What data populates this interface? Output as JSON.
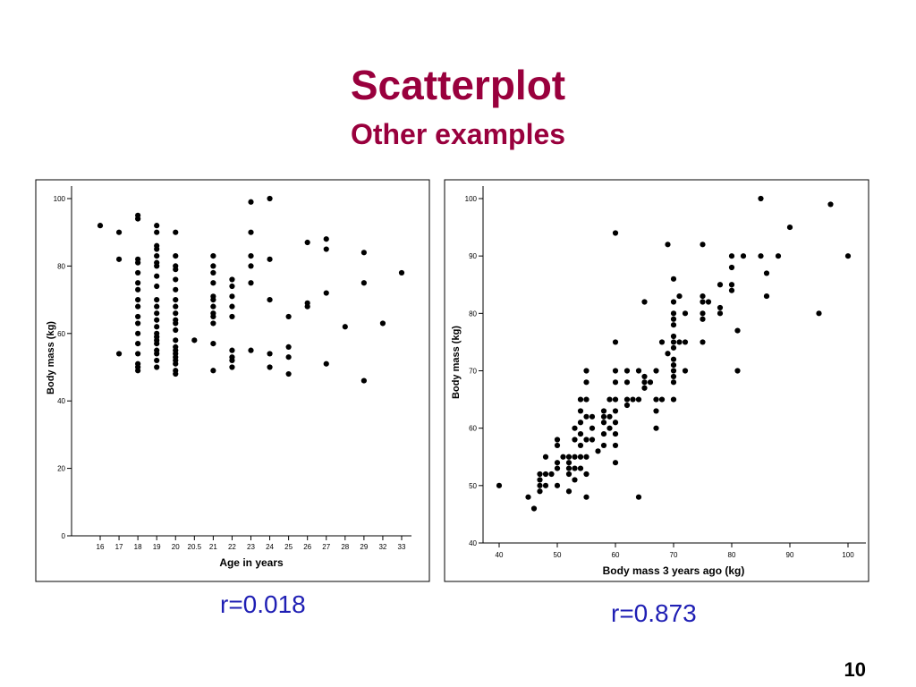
{
  "slide": {
    "title": "Scatterplot",
    "subtitle": "Other examples",
    "page_number": "10",
    "accent_color": "#99003d",
    "r_color": "#1f1fb4"
  },
  "chart_data": [
    {
      "type": "scatter",
      "r_label": "r=0.018",
      "xlabel": "Age in years",
      "ylabel": "Body mass (kg)",
      "x_axis": "categorical",
      "categories": [
        "16",
        "17",
        "18",
        "19",
        "20",
        "20.5",
        "21",
        "22",
        "23",
        "24",
        "25",
        "26",
        "27",
        "28",
        "29",
        "32",
        "33"
      ],
      "ylim": [
        0,
        100
      ],
      "yticks": [
        0,
        20,
        40,
        60,
        80,
        100
      ],
      "grid": false,
      "points": [
        [
          "16",
          92
        ],
        [
          "17",
          90
        ],
        [
          "17",
          82
        ],
        [
          "17",
          54
        ],
        [
          "18",
          95
        ],
        [
          "18",
          94
        ],
        [
          "18",
          82
        ],
        [
          "18",
          81
        ],
        [
          "18",
          78
        ],
        [
          "18",
          75
        ],
        [
          "18",
          73
        ],
        [
          "18",
          70
        ],
        [
          "18",
          68
        ],
        [
          "18",
          65
        ],
        [
          "18",
          63
        ],
        [
          "18",
          60
        ],
        [
          "18",
          57
        ],
        [
          "18",
          54
        ],
        [
          "18",
          51
        ],
        [
          "18",
          50
        ],
        [
          "18",
          49
        ],
        [
          "19",
          92
        ],
        [
          "19",
          90
        ],
        [
          "19",
          86
        ],
        [
          "19",
          85
        ],
        [
          "19",
          83
        ],
        [
          "19",
          81
        ],
        [
          "19",
          80
        ],
        [
          "19",
          77
        ],
        [
          "19",
          74
        ],
        [
          "19",
          70
        ],
        [
          "19",
          68
        ],
        [
          "19",
          66
        ],
        [
          "19",
          64
        ],
        [
          "19",
          62
        ],
        [
          "19",
          60
        ],
        [
          "19",
          59
        ],
        [
          "19",
          58
        ],
        [
          "19",
          57
        ],
        [
          "19",
          55
        ],
        [
          "19",
          54
        ],
        [
          "19",
          52
        ],
        [
          "19",
          50
        ],
        [
          "20",
          90
        ],
        [
          "20",
          83
        ],
        [
          "20",
          80
        ],
        [
          "20",
          79
        ],
        [
          "20",
          76
        ],
        [
          "20",
          73
        ],
        [
          "20",
          70
        ],
        [
          "20",
          68
        ],
        [
          "20",
          66
        ],
        [
          "20",
          64
        ],
        [
          "20",
          63
        ],
        [
          "20",
          61
        ],
        [
          "20",
          58
        ],
        [
          "20",
          56
        ],
        [
          "20",
          55
        ],
        [
          "20",
          54
        ],
        [
          "20",
          53
        ],
        [
          "20",
          52
        ],
        [
          "20",
          51
        ],
        [
          "20",
          49
        ],
        [
          "20",
          48
        ],
        [
          "20.5",
          58
        ],
        [
          "21",
          83
        ],
        [
          "21",
          80
        ],
        [
          "21",
          78
        ],
        [
          "21",
          75
        ],
        [
          "21",
          71
        ],
        [
          "21",
          70
        ],
        [
          "21",
          68
        ],
        [
          "21",
          66
        ],
        [
          "21",
          65
        ],
        [
          "21",
          63
        ],
        [
          "21",
          57
        ],
        [
          "21",
          49
        ],
        [
          "22",
          76
        ],
        [
          "22",
          74
        ],
        [
          "22",
          71
        ],
        [
          "22",
          68
        ],
        [
          "22",
          65
        ],
        [
          "22",
          55
        ],
        [
          "22",
          53
        ],
        [
          "22",
          52
        ],
        [
          "22",
          50
        ],
        [
          "23",
          99
        ],
        [
          "23",
          90
        ],
        [
          "23",
          83
        ],
        [
          "23",
          80
        ],
        [
          "23",
          75
        ],
        [
          "23",
          55
        ],
        [
          "24",
          100
        ],
        [
          "24",
          82
        ],
        [
          "24",
          70
        ],
        [
          "24",
          54
        ],
        [
          "24",
          50
        ],
        [
          "25",
          65
        ],
        [
          "25",
          56
        ],
        [
          "25",
          53
        ],
        [
          "25",
          48
        ],
        [
          "26",
          87
        ],
        [
          "26",
          69
        ],
        [
          "26",
          68
        ],
        [
          "27",
          88
        ],
        [
          "27",
          85
        ],
        [
          "27",
          72
        ],
        [
          "27",
          51
        ],
        [
          "28",
          62
        ],
        [
          "29",
          84
        ],
        [
          "29",
          75
        ],
        [
          "29",
          46
        ],
        [
          "32",
          63
        ],
        [
          "33",
          78
        ]
      ]
    },
    {
      "type": "scatter",
      "r_label": "r=0.873",
      "xlabel": "Body mass 3 years ago (kg)",
      "ylabel": "Body mass (kg)",
      "xlim": [
        40,
        100
      ],
      "xticks": [
        40,
        50,
        60,
        70,
        80,
        90,
        100
      ],
      "ylim": [
        40,
        100
      ],
      "yticks": [
        40,
        50,
        60,
        70,
        80,
        90,
        100
      ],
      "grid": false,
      "points": [
        [
          40,
          50
        ],
        [
          45,
          48
        ],
        [
          46,
          46
        ],
        [
          47,
          49
        ],
        [
          47,
          50
        ],
        [
          47,
          51
        ],
        [
          47,
          52
        ],
        [
          48,
          50
        ],
        [
          48,
          52
        ],
        [
          48,
          55
        ],
        [
          49,
          52
        ],
        [
          50,
          50
        ],
        [
          50,
          53
        ],
        [
          50,
          54
        ],
        [
          50,
          57
        ],
        [
          50,
          58
        ],
        [
          51,
          55
        ],
        [
          52,
          49
        ],
        [
          52,
          52
        ],
        [
          52,
          53
        ],
        [
          52,
          54
        ],
        [
          52,
          55
        ],
        [
          53,
          51
        ],
        [
          53,
          53
        ],
        [
          53,
          55
        ],
        [
          53,
          58
        ],
        [
          53,
          60
        ],
        [
          54,
          53
        ],
        [
          54,
          55
        ],
        [
          54,
          57
        ],
        [
          54,
          59
        ],
        [
          54,
          61
        ],
        [
          54,
          63
        ],
        [
          54,
          65
        ],
        [
          55,
          48
        ],
        [
          55,
          52
        ],
        [
          55,
          55
        ],
        [
          55,
          58
        ],
        [
          55,
          62
        ],
        [
          55,
          65
        ],
        [
          55,
          68
        ],
        [
          55,
          70
        ],
        [
          56,
          58
        ],
        [
          56,
          60
        ],
        [
          56,
          62
        ],
        [
          57,
          56
        ],
        [
          58,
          57
        ],
        [
          58,
          59
        ],
        [
          58,
          61
        ],
        [
          58,
          62
        ],
        [
          58,
          63
        ],
        [
          59,
          60
        ],
        [
          59,
          62
        ],
        [
          59,
          65
        ],
        [
          60,
          54
        ],
        [
          60,
          57
        ],
        [
          60,
          59
        ],
        [
          60,
          61
        ],
        [
          60,
          63
        ],
        [
          60,
          65
        ],
        [
          60,
          68
        ],
        [
          60,
          70
        ],
        [
          60,
          75
        ],
        [
          60,
          94
        ],
        [
          62,
          64
        ],
        [
          62,
          65
        ],
        [
          62,
          68
        ],
        [
          62,
          70
        ],
        [
          63,
          65
        ],
        [
          64,
          48
        ],
        [
          64,
          65
        ],
        [
          64,
          70
        ],
        [
          65,
          67
        ],
        [
          65,
          68
        ],
        [
          65,
          69
        ],
        [
          65,
          82
        ],
        [
          66,
          68
        ],
        [
          67,
          60
        ],
        [
          67,
          63
        ],
        [
          67,
          65
        ],
        [
          67,
          70
        ],
        [
          68,
          65
        ],
        [
          68,
          75
        ],
        [
          69,
          73
        ],
        [
          69,
          92
        ],
        [
          70,
          65
        ],
        [
          70,
          68
        ],
        [
          70,
          69
        ],
        [
          70,
          70
        ],
        [
          70,
          71
        ],
        [
          70,
          72
        ],
        [
          70,
          74
        ],
        [
          70,
          75
        ],
        [
          70,
          76
        ],
        [
          70,
          78
        ],
        [
          70,
          79
        ],
        [
          70,
          80
        ],
        [
          70,
          82
        ],
        [
          70,
          86
        ],
        [
          71,
          75
        ],
        [
          71,
          83
        ],
        [
          72,
          70
        ],
        [
          72,
          75
        ],
        [
          72,
          80
        ],
        [
          75,
          75
        ],
        [
          75,
          79
        ],
        [
          75,
          80
        ],
        [
          75,
          82
        ],
        [
          75,
          83
        ],
        [
          75,
          92
        ],
        [
          76,
          82
        ],
        [
          78,
          80
        ],
        [
          78,
          81
        ],
        [
          78,
          85
        ],
        [
          80,
          84
        ],
        [
          80,
          85
        ],
        [
          80,
          88
        ],
        [
          80,
          90
        ],
        [
          81,
          70
        ],
        [
          81,
          77
        ],
        [
          82,
          90
        ],
        [
          85,
          90
        ],
        [
          85,
          100
        ],
        [
          86,
          83
        ],
        [
          86,
          87
        ],
        [
          88,
          90
        ],
        [
          90,
          95
        ],
        [
          95,
          80
        ],
        [
          97,
          99
        ],
        [
          100,
          90
        ]
      ]
    }
  ]
}
